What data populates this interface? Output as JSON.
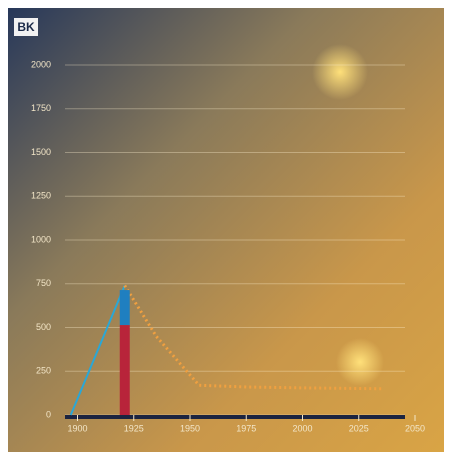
{
  "logo": "BK",
  "chart_data": {
    "type": "line",
    "xlim": [
      1890,
      2050
    ],
    "xticks": [
      1900,
      1925,
      1950,
      1975,
      2000,
      2025,
      2050
    ],
    "ylim": [
      0,
      2000
    ],
    "yticks": [
      0,
      250,
      500,
      750,
      1000,
      1250,
      1500,
      1750,
      2000
    ],
    "grid": true,
    "series": [
      {
        "type": "line",
        "color": "#2aa7d6",
        "x": [
          1897,
          1921
        ],
        "values": [
          0,
          740
        ]
      },
      {
        "type": "dots",
        "color": "#f0a040",
        "x": [
          1921,
          1935,
          1954,
          1975,
          2000,
          2035
        ],
        "values": [
          740,
          450,
          170,
          160,
          155,
          150
        ]
      },
      {
        "type": "bar",
        "color": "#b8243a",
        "x": [
          1921
        ],
        "values": [
          514
        ]
      },
      {
        "type": "bar",
        "color": "#1f7fc0",
        "x": [
          1921
        ],
        "values": [
          200
        ]
      }
    ]
  }
}
